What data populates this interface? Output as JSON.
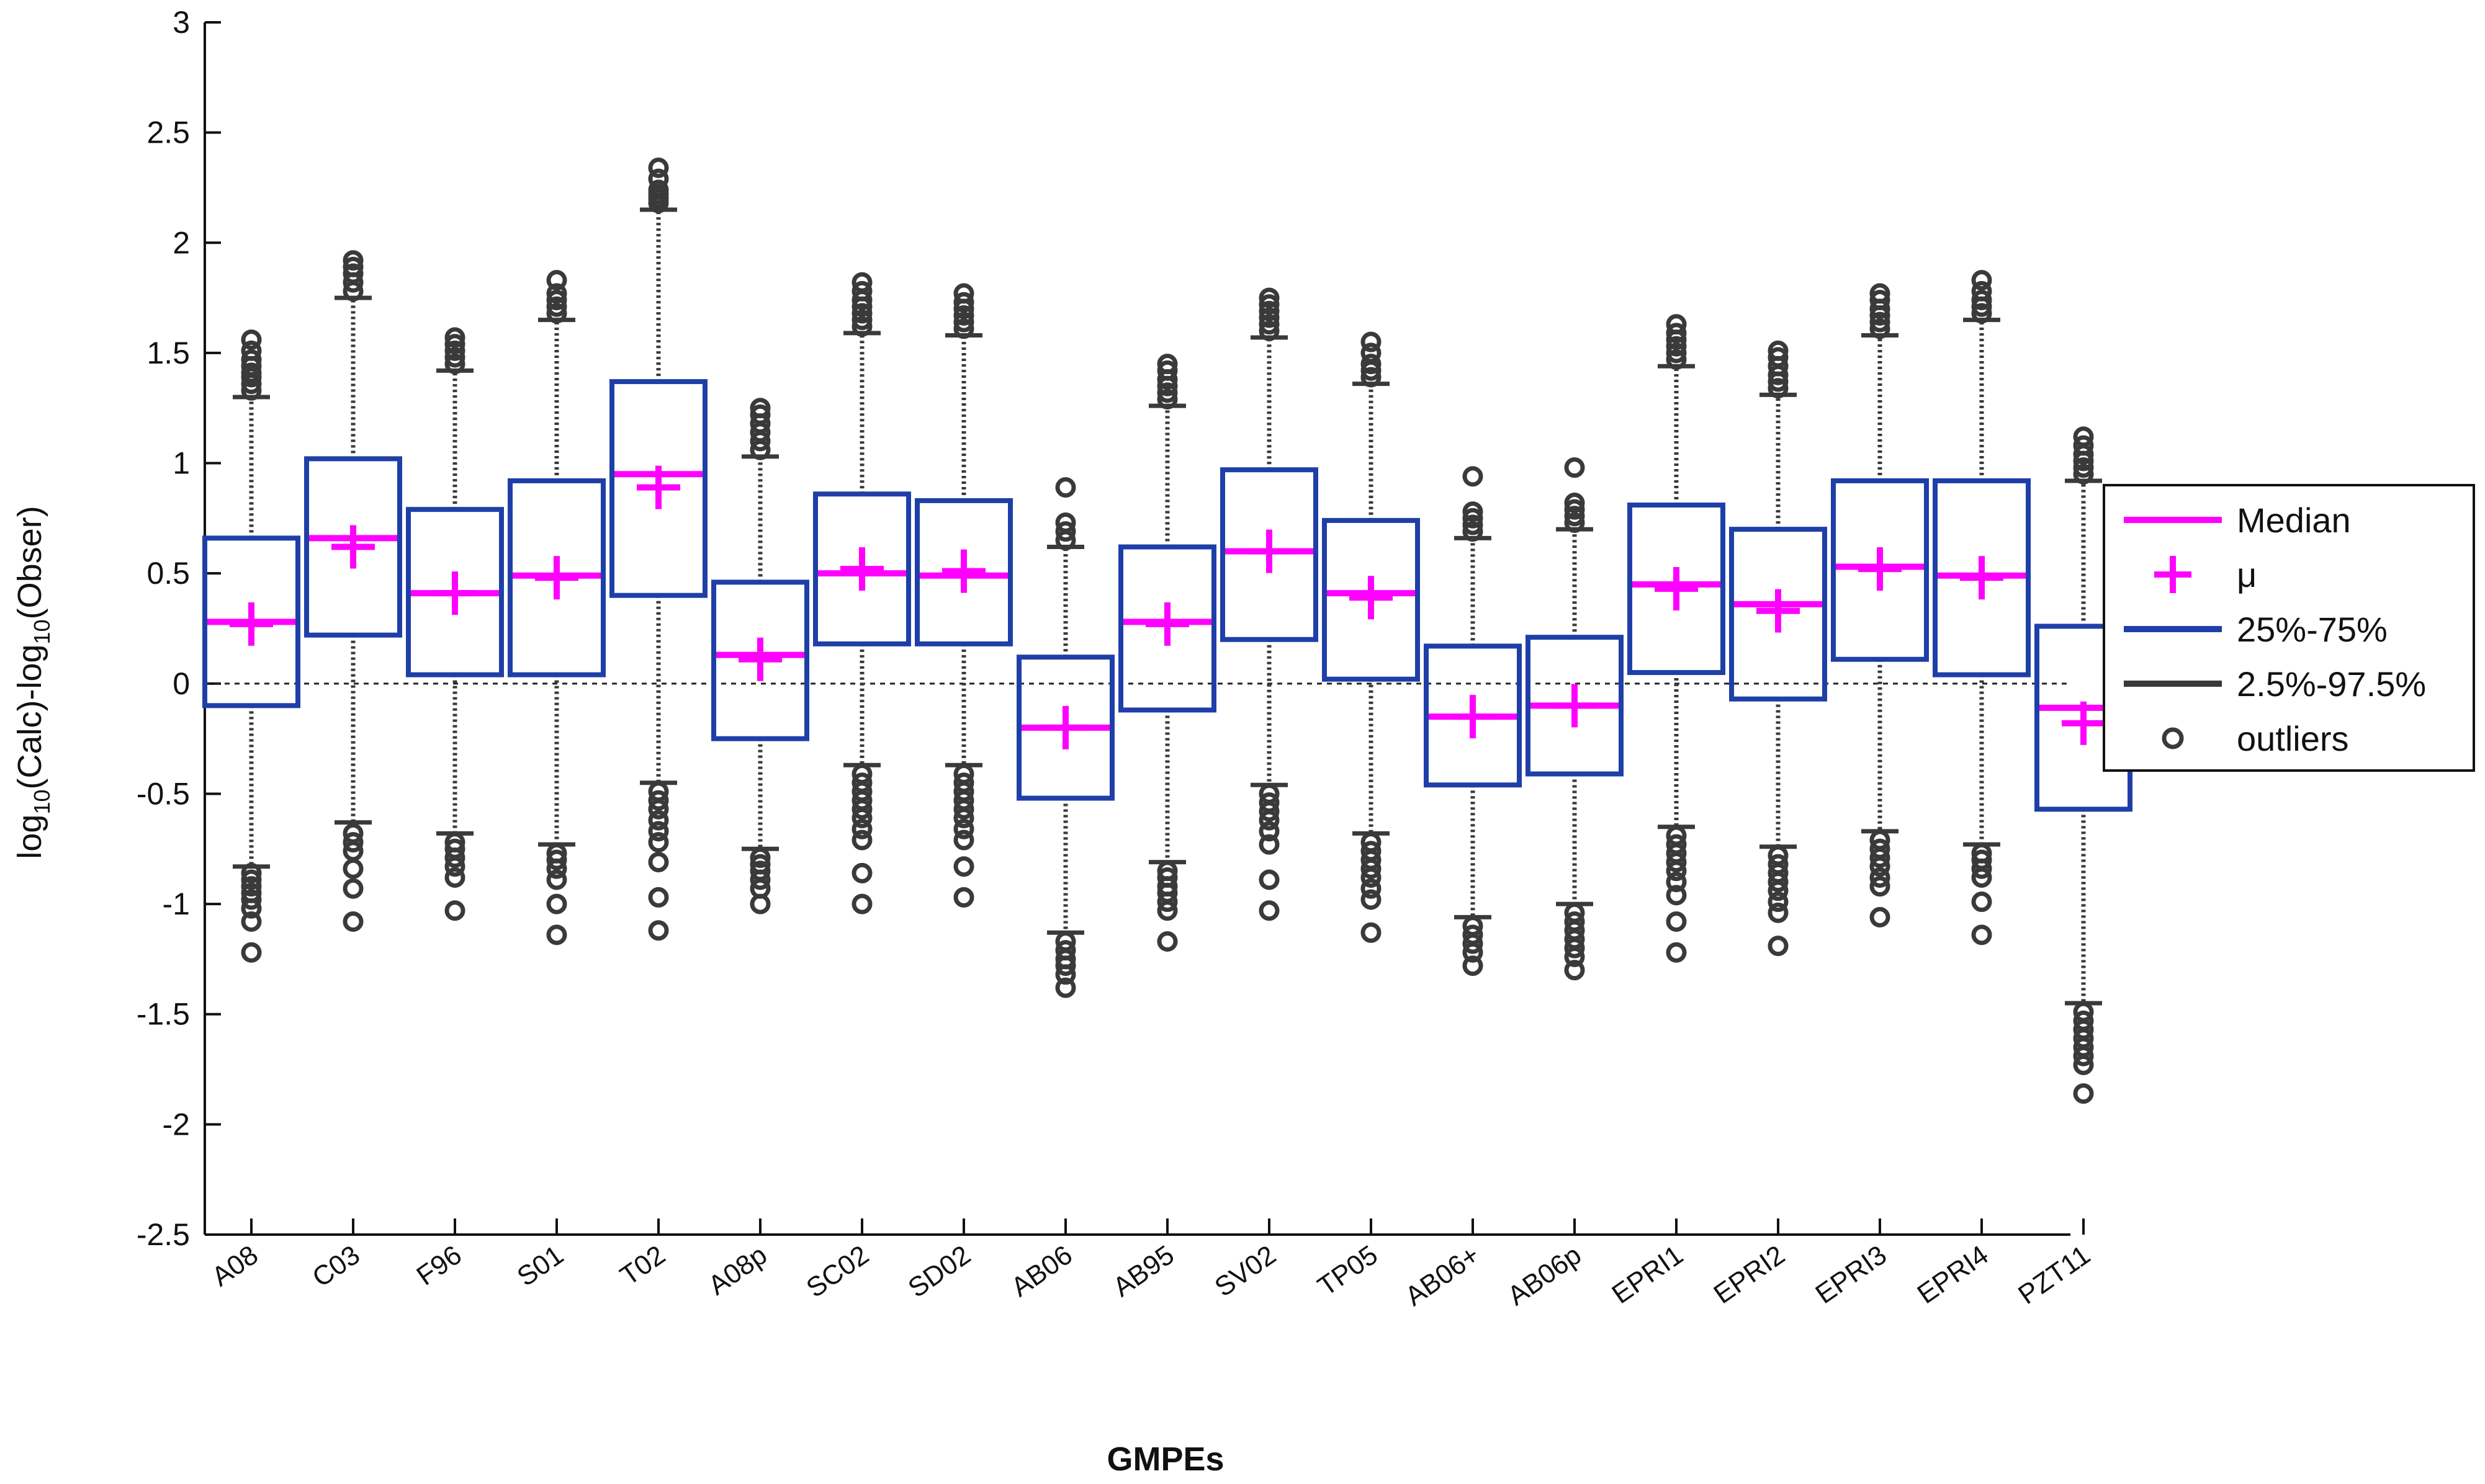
{
  "chart_data": {
    "type": "box",
    "title": "",
    "xlabel": "GMPEs",
    "ylabel": "log10(Calc)-log10(Obser)",
    "ylabel_parts": {
      "a": "log",
      "sub1": "10",
      "b": "(Calc)-log",
      "sub2": "10",
      "c": "(Obser)"
    },
    "ylim": [
      -2.5,
      3
    ],
    "yticks": [
      "-2.5",
      "-2",
      "-1.5",
      "-1",
      "-0.5",
      "0",
      "0.5",
      "1",
      "1.5",
      "2",
      "2.5",
      "3"
    ],
    "reference_line": 0,
    "legend": {
      "position": "right",
      "entries": [
        {
          "key": "median",
          "label": "Median"
        },
        {
          "key": "mean",
          "label": "μ"
        },
        {
          "key": "iqr",
          "label": "25%-75%"
        },
        {
          "key": "whisker",
          "label": "2.5%-97.5%"
        },
        {
          "key": "outliers",
          "label": "outliers"
        }
      ]
    },
    "colors": {
      "median": "#ff00ff",
      "mean": "#ff00ff",
      "box": "#1f3fa8",
      "whisker": "#3a3a3a",
      "outlier": "#3a3a3a",
      "axis": "#111111"
    },
    "categories": [
      "A08",
      "C03",
      "F96",
      "S01",
      "T02",
      "A08p",
      "SC02",
      "SD02",
      "AB06",
      "AB95",
      "SV02",
      "TP05",
      "AB06+",
      "AB06p",
      "EPRI1",
      "EPRI2",
      "EPRI3",
      "EPRI4",
      "PZT11"
    ],
    "series": [
      {
        "q1": -0.1,
        "median": 0.28,
        "q3": 0.66,
        "mean": 0.27,
        "w_low": -0.83,
        "w_high": 1.3,
        "outliers_low": [
          -0.86,
          -0.89,
          -0.92,
          -0.95,
          -0.98,
          -1.02,
          -1.08,
          -1.22
        ],
        "outliers_high": [
          1.33,
          1.36,
          1.39,
          1.41,
          1.44,
          1.47,
          1.51,
          1.56
        ]
      },
      {
        "q1": 0.22,
        "median": 0.66,
        "q3": 1.02,
        "mean": 0.62,
        "w_low": -0.63,
        "w_high": 1.75,
        "outliers_low": [
          -0.68,
          -0.72,
          -0.76,
          -0.84,
          -0.93,
          -1.08
        ],
        "outliers_high": [
          1.78,
          1.82,
          1.86,
          1.89,
          1.92
        ]
      },
      {
        "q1": 0.04,
        "median": 0.41,
        "q3": 0.79,
        "mean": 0.41,
        "w_low": -0.68,
        "w_high": 1.42,
        "outliers_low": [
          -0.72,
          -0.75,
          -0.79,
          -0.83,
          -0.88,
          -1.03
        ],
        "outliers_high": [
          1.45,
          1.48,
          1.51,
          1.54,
          1.57
        ]
      },
      {
        "q1": 0.04,
        "median": 0.49,
        "q3": 0.92,
        "mean": 0.48,
        "w_low": -0.73,
        "w_high": 1.65,
        "outliers_low": [
          -0.77,
          -0.8,
          -0.84,
          -0.89,
          -1.0,
          -1.14
        ],
        "outliers_high": [
          1.68,
          1.71,
          1.74,
          1.77,
          1.83
        ]
      },
      {
        "q1": 0.4,
        "median": 0.95,
        "q3": 1.37,
        "mean": 0.89,
        "w_low": -0.45,
        "w_high": 2.15,
        "outliers_low": [
          -0.49,
          -0.53,
          -0.57,
          -0.62,
          -0.67,
          -0.72,
          -0.81,
          -0.97,
          -1.12
        ],
        "outliers_high": [
          2.18,
          2.2,
          2.22,
          2.24,
          2.29,
          2.34
        ]
      },
      {
        "q1": -0.25,
        "median": 0.13,
        "q3": 0.46,
        "mean": 0.11,
        "w_low": -0.75,
        "w_high": 1.03,
        "outliers_low": [
          -0.79,
          -0.82,
          -0.85,
          -0.89,
          -0.93,
          -1.0
        ],
        "outliers_high": [
          1.06,
          1.1,
          1.14,
          1.18,
          1.22,
          1.25
        ]
      },
      {
        "q1": 0.18,
        "median": 0.5,
        "q3": 0.86,
        "mean": 0.52,
        "w_low": -0.37,
        "w_high": 1.59,
        "outliers_low": [
          -0.41,
          -0.45,
          -0.49,
          -0.53,
          -0.57,
          -0.61,
          -0.66,
          -0.71,
          -0.86,
          -1.0
        ],
        "outliers_high": [
          1.62,
          1.65,
          1.68,
          1.71,
          1.74,
          1.78,
          1.82
        ]
      },
      {
        "q1": 0.18,
        "median": 0.49,
        "q3": 0.83,
        "mean": 0.51,
        "w_low": -0.37,
        "w_high": 1.58,
        "outliers_low": [
          -0.41,
          -0.45,
          -0.49,
          -0.53,
          -0.57,
          -0.61,
          -0.66,
          -0.71,
          -0.83,
          -0.97
        ],
        "outliers_high": [
          1.61,
          1.64,
          1.67,
          1.7,
          1.73,
          1.77
        ]
      },
      {
        "q1": -0.52,
        "median": -0.2,
        "q3": 0.12,
        "mean": -0.2,
        "w_low": -1.13,
        "w_high": 0.62,
        "outliers_low": [
          -1.17,
          -1.21,
          -1.25,
          -1.28,
          -1.32,
          -1.38
        ],
        "outliers_high": [
          0.65,
          0.69,
          0.73,
          0.89
        ]
      },
      {
        "q1": -0.12,
        "median": 0.28,
        "q3": 0.62,
        "mean": 0.27,
        "w_low": -0.81,
        "w_high": 1.26,
        "outliers_low": [
          -0.85,
          -0.88,
          -0.92,
          -0.95,
          -0.99,
          -1.03,
          -1.17
        ],
        "outliers_high": [
          1.29,
          1.32,
          1.35,
          1.38,
          1.42,
          1.45
        ]
      },
      {
        "q1": 0.2,
        "median": 0.6,
        "q3": 0.97,
        "mean": 0.6,
        "w_low": -0.46,
        "w_high": 1.57,
        "outliers_low": [
          -0.5,
          -0.54,
          -0.58,
          -0.62,
          -0.67,
          -0.73,
          -0.89,
          -1.03
        ],
        "outliers_high": [
          1.6,
          1.63,
          1.66,
          1.69,
          1.72,
          1.75
        ]
      },
      {
        "q1": 0.02,
        "median": 0.41,
        "q3": 0.74,
        "mean": 0.39,
        "w_low": -0.68,
        "w_high": 1.36,
        "outliers_low": [
          -0.72,
          -0.76,
          -0.8,
          -0.84,
          -0.88,
          -0.93,
          -0.98,
          -1.13
        ],
        "outliers_high": [
          1.39,
          1.42,
          1.45,
          1.5,
          1.55
        ]
      },
      {
        "q1": -0.46,
        "median": -0.15,
        "q3": 0.17,
        "mean": -0.15,
        "w_low": -1.06,
        "w_high": 0.66,
        "outliers_low": [
          -1.1,
          -1.14,
          -1.18,
          -1.22,
          -1.28
        ],
        "outliers_high": [
          0.69,
          0.72,
          0.75,
          0.78,
          0.94
        ]
      },
      {
        "q1": -0.41,
        "median": -0.1,
        "q3": 0.21,
        "mean": -0.1,
        "w_low": -1.0,
        "w_high": 0.7,
        "outliers_low": [
          -1.04,
          -1.08,
          -1.12,
          -1.16,
          -1.2,
          -1.24,
          -1.3
        ],
        "outliers_high": [
          0.73,
          0.76,
          0.79,
          0.82,
          0.98
        ]
      },
      {
        "q1": 0.05,
        "median": 0.45,
        "q3": 0.81,
        "mean": 0.43,
        "w_low": -0.65,
        "w_high": 1.44,
        "outliers_low": [
          -0.69,
          -0.73,
          -0.77,
          -0.81,
          -0.85,
          -0.9,
          -0.96,
          -1.08,
          -1.22
        ],
        "outliers_high": [
          1.47,
          1.5,
          1.53,
          1.56,
          1.59,
          1.63
        ]
      },
      {
        "q1": -0.07,
        "median": 0.36,
        "q3": 0.7,
        "mean": 0.33,
        "w_low": -0.74,
        "w_high": 1.31,
        "outliers_low": [
          -0.78,
          -0.82,
          -0.86,
          -0.9,
          -0.94,
          -0.99,
          -1.04,
          -1.19
        ],
        "outliers_high": [
          1.34,
          1.37,
          1.4,
          1.44,
          1.48,
          1.51
        ]
      },
      {
        "q1": 0.11,
        "median": 0.53,
        "q3": 0.92,
        "mean": 0.52,
        "w_low": -0.67,
        "w_high": 1.58,
        "outliers_low": [
          -0.71,
          -0.75,
          -0.79,
          -0.83,
          -0.88,
          -0.92,
          -1.06
        ],
        "outliers_high": [
          1.61,
          1.64,
          1.67,
          1.7,
          1.74,
          1.77
        ]
      },
      {
        "q1": 0.04,
        "median": 0.49,
        "q3": 0.92,
        "mean": 0.48,
        "w_low": -0.73,
        "w_high": 1.65,
        "outliers_low": [
          -0.77,
          -0.8,
          -0.84,
          -0.88,
          -0.99,
          -1.14
        ],
        "outliers_high": [
          1.68,
          1.71,
          1.74,
          1.78,
          1.83
        ]
      },
      {
        "q1": -0.57,
        "median": -0.11,
        "q3": 0.26,
        "mean": -0.18,
        "w_low": -1.45,
        "w_high": 0.92,
        "outliers_low": [
          -1.49,
          -1.53,
          -1.57,
          -1.61,
          -1.65,
          -1.69,
          -1.73,
          -1.86
        ],
        "outliers_high": [
          0.95,
          0.98,
          1.01,
          1.04,
          1.08,
          1.12
        ]
      }
    ]
  }
}
